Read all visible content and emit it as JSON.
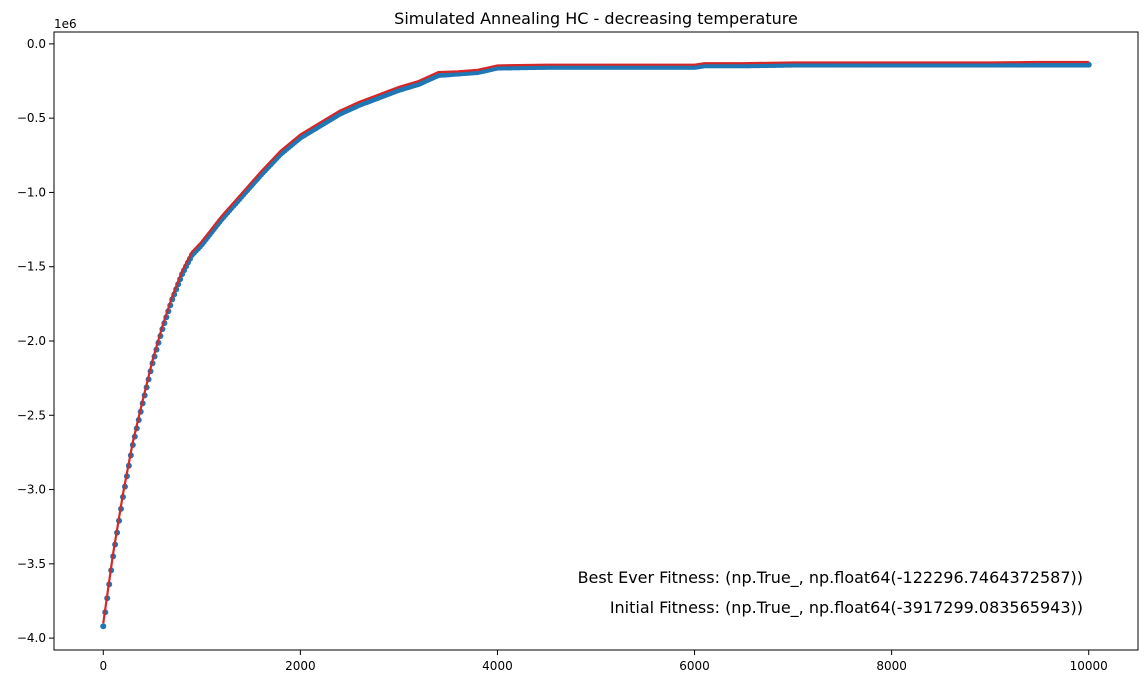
{
  "chart_data": {
    "type": "line",
    "title": "Simulated Annealing HC - decreasing temperature",
    "xlabel": "",
    "ylabel": "",
    "xlim": [
      -500,
      10500
    ],
    "ylim": [
      -4.08,
      0.08
    ],
    "y_scale_label": "1e6",
    "x_ticks": [
      0,
      2000,
      4000,
      6000,
      8000,
      10000
    ],
    "x_tick_labels": [
      "0",
      "2000",
      "4000",
      "6000",
      "8000",
      "10000"
    ],
    "y_ticks": [
      0.0,
      -0.5,
      -1.0,
      -1.5,
      -2.0,
      -2.5,
      -3.0,
      -3.5,
      -4.0
    ],
    "y_tick_labels": [
      "0.0",
      "−0.5",
      "−1.0",
      "−1.5",
      "−2.0",
      "−2.5",
      "−3.0",
      "−3.5",
      "−4.0"
    ],
    "grid": false,
    "series": [
      {
        "color": "#1f77b4",
        "style": "points",
        "x": [
          0,
          100,
          200,
          300,
          400,
          500,
          600,
          700,
          800,
          900,
          1000,
          1200,
          1400,
          1600,
          1800,
          2000,
          2200,
          2400,
          2600,
          2800,
          3000,
          3200,
          3400,
          3600,
          3800,
          4000,
          4500,
          5000,
          5500,
          6000,
          6100,
          6500,
          7000,
          7500,
          8000,
          8500,
          9000,
          9500,
          10000
        ],
        "values": [
          -3.92,
          -3.45,
          -3.05,
          -2.7,
          -2.42,
          -2.15,
          -1.92,
          -1.72,
          -1.55,
          -1.42,
          -1.35,
          -1.18,
          -1.03,
          -0.88,
          -0.74,
          -0.63,
          -0.55,
          -0.47,
          -0.41,
          -0.36,
          -0.31,
          -0.27,
          -0.21,
          -0.2,
          -0.19,
          -0.16,
          -0.155,
          -0.155,
          -0.155,
          -0.155,
          -0.145,
          -0.145,
          -0.14,
          -0.14,
          -0.14,
          -0.14,
          -0.14,
          -0.14,
          -0.14
        ]
      },
      {
        "color": "#d62728",
        "style": "line",
        "x": [
          0,
          100,
          200,
          300,
          400,
          500,
          600,
          700,
          800,
          900,
          1000,
          1200,
          1400,
          1600,
          1800,
          2000,
          2200,
          2400,
          2600,
          2800,
          3000,
          3200,
          3400,
          3600,
          3800,
          4000,
          4500,
          5000,
          5500,
          6000,
          6100,
          6500,
          7000,
          7500,
          8000,
          8500,
          9000,
          9500,
          10000
        ],
        "values": [
          -3.9,
          -3.43,
          -3.03,
          -2.68,
          -2.4,
          -2.13,
          -1.9,
          -1.7,
          -1.53,
          -1.4,
          -1.33,
          -1.16,
          -1.01,
          -0.86,
          -0.72,
          -0.61,
          -0.53,
          -0.45,
          -0.39,
          -0.34,
          -0.29,
          -0.25,
          -0.19,
          -0.185,
          -0.175,
          -0.145,
          -0.14,
          -0.14,
          -0.14,
          -0.14,
          -0.13,
          -0.13,
          -0.125,
          -0.125,
          -0.125,
          -0.125,
          -0.125,
          -0.122,
          -0.122
        ]
      }
    ],
    "annotations": [
      "Best Ever Fitness: (np.True_, np.float64(-122296.7464372587))",
      "Initial Fitness: (np.True_, np.float64(-3917299.083565943))"
    ],
    "colors": {
      "points": "#1f77b4",
      "line": "#d62728",
      "axis": "#000000"
    }
  }
}
